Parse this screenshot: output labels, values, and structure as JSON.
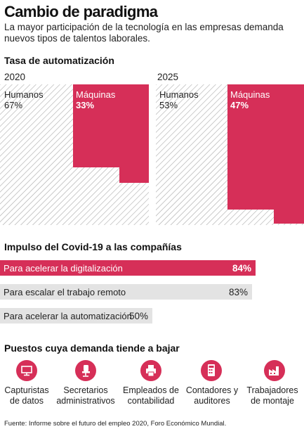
{
  "title": "Cambio de paradigma",
  "subtitle": "La mayor participación de la tecnología en las empresas demanda nuevos tipos de talentos laborales.",
  "automation": {
    "heading": "Tasa de automatización",
    "years": [
      {
        "year": "2020",
        "humans_label": "Humanos",
        "humans_pct": "67%",
        "machines_label": "Máquinas",
        "machines_pct": "33%"
      },
      {
        "year": "2025",
        "humans_label": "Humanos",
        "humans_pct": "53%",
        "machines_label": "Máquinas",
        "machines_pct": "47%"
      }
    ]
  },
  "covid": {
    "heading": "Impulso del Covid-19 a las compañías"
  },
  "jobs": {
    "heading": "Puestos cuya demanda tiende a bajar",
    "items": [
      {
        "label": "Capturistas de datos",
        "icon": "monitor-icon"
      },
      {
        "label": "Secretarios administrativos",
        "icon": "office-chair-icon"
      },
      {
        "label": "Empleados de contabilidad",
        "icon": "printer-icon"
      },
      {
        "label": "Contadores y auditores",
        "icon": "calculator-icon"
      },
      {
        "label": "Trabajadores de montaje",
        "icon": "factory-icon"
      }
    ]
  },
  "source": "Fuente: Informe sobre el futuro del empleo 2020, Foro Económico Mundial.",
  "colors": {
    "accent": "#d62f58",
    "hatch": "#a9a9a9",
    "bar_gray": "#e3e3e3"
  },
  "chart_data": [
    {
      "type": "area",
      "title": "Tasa de automatización",
      "categories": [
        "2020",
        "2025"
      ],
      "series": [
        {
          "name": "Humanos",
          "values": [
            67,
            53
          ]
        },
        {
          "name": "Máquinas",
          "values": [
            33,
            47
          ]
        }
      ],
      "unit": "%"
    },
    {
      "type": "bar",
      "title": "Impulso del Covid-19 a las compañías",
      "categories": [
        "Para acelerar la digitalización",
        "Para escalar el trabajo remoto",
        "Para acelerar la automatización"
      ],
      "values": [
        84,
        83,
        50
      ],
      "value_labels": [
        "84%",
        "83%",
        "50%"
      ],
      "highlight": [
        true,
        false,
        false
      ],
      "ylim": [
        0,
        100
      ]
    }
  ]
}
